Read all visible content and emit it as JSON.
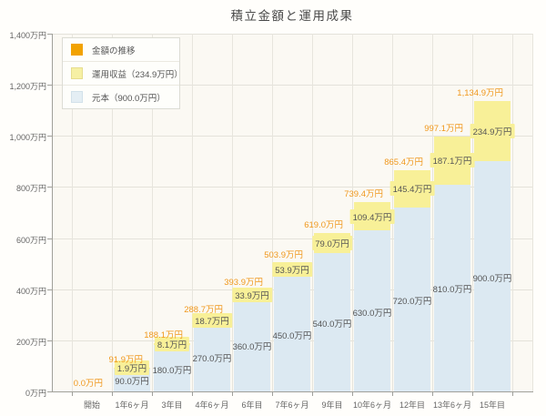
{
  "page": {
    "title": "積立金額と運用成果"
  },
  "colors": {
    "accent_orange": "#f2a200",
    "orange_label_text": "#f0981d",
    "income_yellow": "#f8f098",
    "principal_blue": "#dce9f2",
    "legend_yellow_swatch": "#f6f0a4",
    "legend_blue_swatch": "#e4eef4",
    "plot_background": "#fbf9f3",
    "grid_line": "#e4e2da",
    "axis_line": "#a0a09a"
  },
  "legend": {
    "items": [
      {
        "label": "金額の推移",
        "color": "#f2a200",
        "border": "#f2a200"
      },
      {
        "label": "運用収益（234.9万円）",
        "color": "#f6f0a4",
        "border": "#e6dd8e"
      },
      {
        "label": "元本（900.0万円）",
        "color": "#e4eef4",
        "border": "#d2e1ea"
      }
    ]
  },
  "chart_data": {
    "type": "bar",
    "stacked": true,
    "title": "積立金額と運用成果",
    "xlabel": "",
    "ylabel": "",
    "unit": "万円",
    "ylim": [
      0,
      1400
    ],
    "grid": true,
    "legend_position": "upper-left",
    "categories": [
      "開始",
      "1年6ヶ月",
      "3年目",
      "4年6ヶ月",
      "6年目",
      "7年6ヶ月",
      "9年目",
      "10年6ヶ月",
      "12年目",
      "13年6ヶ月",
      "15年目"
    ],
    "series": [
      {
        "name": "元本（900.0万円）",
        "color": "#dce9f2",
        "values": [
          0,
          90.0,
          180.0,
          270.0,
          360.0,
          450.0,
          540.0,
          630.0,
          720.0,
          810.0,
          900.0
        ],
        "labels": [
          "",
          "90.0万円",
          "180.0万円",
          "270.0万円",
          "360.0万円",
          "450.0万円",
          "540.0万円",
          "630.0万円",
          "720.0万円",
          "810.0万円",
          "900.0万円"
        ]
      },
      {
        "name": "運用収益（234.9万円）",
        "color": "#f8f098",
        "values": [
          0,
          1.9,
          8.1,
          18.7,
          33.9,
          53.9,
          79.0,
          109.4,
          145.4,
          187.1,
          234.9
        ],
        "labels": [
          "",
          "1.9万円",
          "8.1万円",
          "18.7万円",
          "33.9万円",
          "53.9万円",
          "79.0万円",
          "109.4万円",
          "145.4万円",
          "187.1万円",
          "234.9万円"
        ]
      }
    ],
    "totals": {
      "name": "金額の推移",
      "color": "#f0981d",
      "values": [
        0.0,
        91.9,
        188.1,
        288.7,
        393.9,
        503.9,
        619.0,
        739.4,
        865.4,
        997.1,
        1134.9
      ],
      "labels": [
        "0.0万円",
        "91.9万円",
        "188.1万円",
        "288.7万円",
        "393.9万円",
        "503.9万円",
        "619.0万円",
        "739.4万円",
        "865.4万円",
        "997.1万円",
        "1,134.9万円"
      ]
    },
    "y_ticks": {
      "values": [
        0,
        200,
        400,
        600,
        800,
        1000,
        1200,
        1400
      ],
      "labels": [
        "0万円",
        "200万円",
        "400万円",
        "600万円",
        "800万円",
        "1,000万円",
        "1,200万円",
        "1,400万円"
      ]
    }
  }
}
